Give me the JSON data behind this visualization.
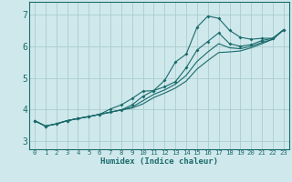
{
  "xlabel": "Humidex (Indice chaleur)",
  "xlim": [
    -0.5,
    23.5
  ],
  "ylim": [
    2.75,
    7.4
  ],
  "xticks": [
    0,
    1,
    2,
    3,
    4,
    5,
    6,
    7,
    8,
    9,
    10,
    11,
    12,
    13,
    14,
    15,
    16,
    17,
    18,
    19,
    20,
    21,
    22,
    23
  ],
  "yticks": [
    3,
    4,
    5,
    6,
    7
  ],
  "bg_color": "#cfe8ec",
  "grid_color": "#aacccc",
  "line_color": "#1a6b6b",
  "line1_x": [
    0,
    1,
    2,
    3,
    4,
    5,
    6,
    7,
    8,
    9,
    10,
    11,
    12,
    13,
    14,
    15,
    16,
    17,
    18,
    19,
    20,
    21,
    22,
    23
  ],
  "line1_y": [
    3.65,
    3.48,
    3.55,
    3.65,
    3.72,
    3.78,
    3.85,
    3.92,
    3.99,
    4.05,
    4.18,
    4.38,
    4.52,
    4.68,
    4.9,
    5.28,
    5.55,
    5.8,
    5.82,
    5.85,
    5.95,
    6.08,
    6.22,
    6.52
  ],
  "line2_x": [
    0,
    1,
    2,
    3,
    4,
    5,
    6,
    7,
    8,
    9,
    10,
    11,
    12,
    13,
    14,
    15,
    16,
    17,
    18,
    19,
    20,
    21,
    22,
    23
  ],
  "line2_y": [
    3.65,
    3.48,
    3.55,
    3.65,
    3.72,
    3.78,
    3.85,
    3.92,
    3.99,
    4.08,
    4.28,
    4.48,
    4.62,
    4.8,
    5.08,
    5.52,
    5.82,
    6.08,
    5.95,
    5.92,
    6.0,
    6.12,
    6.22,
    6.52
  ],
  "line3_x": [
    0,
    1,
    2,
    3,
    4,
    5,
    6,
    7,
    8,
    9,
    10,
    11,
    12,
    13,
    14,
    15,
    16,
    17,
    18,
    19,
    20,
    21,
    22,
    23
  ],
  "line3_y": [
    3.65,
    3.48,
    3.55,
    3.65,
    3.72,
    3.78,
    3.85,
    4.02,
    4.15,
    4.35,
    4.58,
    4.6,
    4.92,
    5.5,
    5.75,
    6.6,
    6.95,
    6.88,
    6.5,
    6.28,
    6.22,
    6.25,
    6.25,
    6.52
  ],
  "line4_x": [
    0,
    1,
    2,
    3,
    4,
    5,
    6,
    7,
    8,
    9,
    10,
    11,
    12,
    13,
    14,
    15,
    16,
    17,
    18,
    19,
    20,
    21,
    22,
    23
  ],
  "line4_y": [
    3.65,
    3.48,
    3.55,
    3.65,
    3.72,
    3.78,
    3.85,
    3.92,
    3.99,
    4.15,
    4.42,
    4.6,
    4.72,
    4.88,
    5.32,
    5.88,
    6.15,
    6.42,
    6.08,
    6.0,
    6.05,
    6.18,
    6.25,
    6.52
  ]
}
